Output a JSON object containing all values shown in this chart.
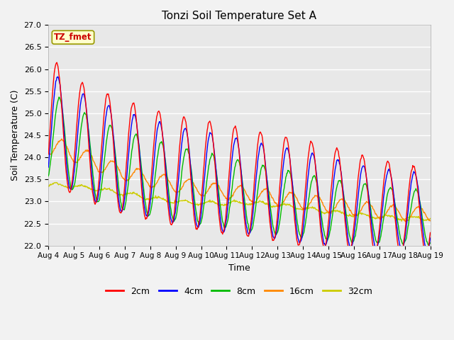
{
  "title": "Tonzi Soil Temperature Set A",
  "xlabel": "Time",
  "ylabel": "Soil Temperature (C)",
  "ylim": [
    22.0,
    27.0
  ],
  "yticks": [
    22.0,
    22.5,
    23.0,
    23.5,
    24.0,
    24.5,
    25.0,
    25.5,
    26.0,
    26.5,
    27.0
  ],
  "xtick_labels": [
    "Aug 4",
    "Aug 5",
    "Aug 6",
    "Aug 7",
    "Aug 8",
    "Aug 9",
    "Aug 10",
    "Aug 11",
    "Aug 12",
    "Aug 13",
    "Aug 14",
    "Aug 15",
    "Aug 16",
    "Aug 17",
    "Aug 18",
    "Aug 19"
  ],
  "colors": {
    "2cm": "#ff0000",
    "4cm": "#0000ff",
    "8cm": "#00bb00",
    "16cm": "#ff8800",
    "32cm": "#cccc00"
  },
  "legend_label": "TZ_fmet",
  "plot_bg_color": "#e8e8e8",
  "fig_bg_color": "#f2f2f2",
  "n_days": 15,
  "samples_per_day": 48,
  "base_trend": {
    "2cm": [
      24.8,
      24.5,
      24.2,
      24.0,
      23.85,
      23.7,
      23.6,
      23.5,
      23.4,
      23.3,
      23.2,
      23.1,
      23.0,
      22.9,
      22.8,
      22.75
    ],
    "4cm": [
      24.7,
      24.4,
      24.1,
      23.9,
      23.75,
      23.6,
      23.5,
      23.4,
      23.3,
      23.2,
      23.1,
      23.0,
      22.9,
      22.85,
      22.78,
      22.72
    ],
    "8cm": [
      24.5,
      24.2,
      23.9,
      23.7,
      23.55,
      23.4,
      23.3,
      23.2,
      23.1,
      23.0,
      22.9,
      22.82,
      22.75,
      22.7,
      22.65,
      22.62
    ],
    "16cm": [
      24.3,
      24.1,
      23.85,
      23.65,
      23.5,
      23.38,
      23.3,
      23.22,
      23.15,
      23.08,
      23.0,
      22.92,
      22.85,
      22.78,
      22.72,
      22.68
    ],
    "32cm": [
      23.38,
      23.35,
      23.28,
      23.18,
      23.08,
      23.0,
      22.96,
      22.96,
      22.97,
      22.92,
      22.85,
      22.77,
      22.7,
      22.65,
      22.62,
      22.6
    ]
  },
  "amplitude": {
    "2cm": [
      1.5,
      1.3,
      1.3,
      1.3,
      1.25,
      1.25,
      1.25,
      1.25,
      1.2,
      1.2,
      1.2,
      1.15,
      1.1,
      1.05,
      1.0,
      0.95
    ],
    "4cm": [
      1.3,
      1.15,
      1.15,
      1.15,
      1.1,
      1.1,
      1.1,
      1.1,
      1.05,
      1.05,
      1.05,
      1.0,
      0.95,
      0.9,
      0.88,
      0.85
    ],
    "8cm": [
      1.0,
      0.95,
      0.92,
      0.9,
      0.88,
      0.85,
      0.83,
      0.8,
      0.78,
      0.75,
      0.72,
      0.7,
      0.68,
      0.65,
      0.62,
      0.6
    ],
    "16cm": [
      0.22,
      0.2,
      0.18,
      0.17,
      0.17,
      0.17,
      0.17,
      0.17,
      0.17,
      0.17,
      0.17,
      0.17,
      0.17,
      0.17,
      0.16,
      0.16
    ],
    "32cm": [
      0.04,
      0.04,
      0.04,
      0.04,
      0.04,
      0.04,
      0.04,
      0.04,
      0.04,
      0.04,
      0.04,
      0.04,
      0.04,
      0.04,
      0.04,
      0.04
    ]
  },
  "phase_shift_hours": {
    "2cm": 0,
    "4cm": 1.0,
    "8cm": 2.5,
    "16cm": 5.0,
    "32cm": 0.0
  }
}
